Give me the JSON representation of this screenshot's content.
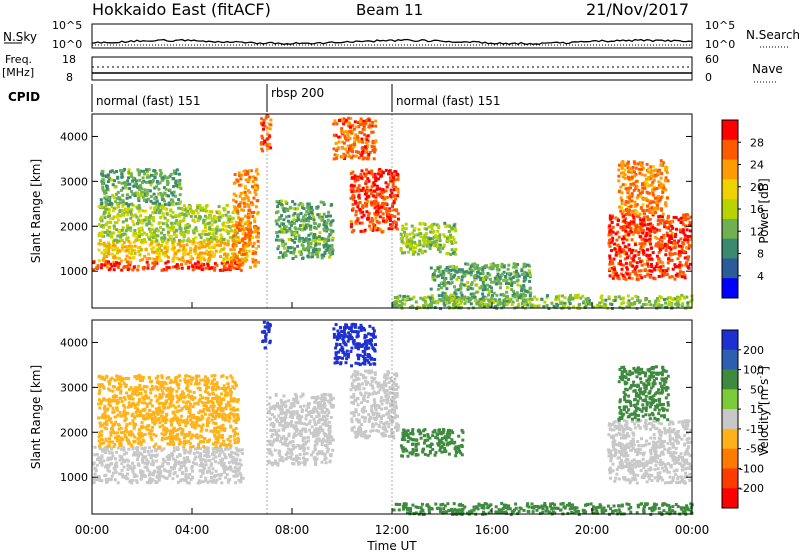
{
  "header": {
    "radar": "Hokkaido East (fitACF)",
    "beam": "Beam 11",
    "date": "21/Nov/2017"
  },
  "noise_panel": {
    "left_label": "N.Sky",
    "right_label": "N.Search",
    "ticks_left": [
      "10^5",
      "10^0"
    ],
    "ticks_right": [
      "10^5",
      "10^0"
    ]
  },
  "freq_panel": {
    "left_label": "Freq.",
    "left_unit": "[MHz]",
    "right_label": "Nave",
    "ticks_left": [
      "18",
      "8"
    ],
    "ticks_right": [
      "60",
      "0"
    ]
  },
  "cpid": {
    "label": "CPID",
    "modes": [
      {
        "name": "normal (fast) 151",
        "start": 0,
        "end": 7
      },
      {
        "name": "rbsp 200",
        "start": 7,
        "end": 12
      },
      {
        "name": "normal (fast) 151",
        "start": 12,
        "end": 24
      }
    ]
  },
  "x_axis": {
    "label": "Time UT",
    "tick_labels": [
      "00:00",
      "04:00",
      "08:00",
      "12:00",
      "16:00",
      "20:00",
      "00:00"
    ],
    "range_hours": [
      0,
      24
    ]
  },
  "power_colorbar": {
    "label": "Power [dB]",
    "tick_labels": [
      "28",
      "24",
      "20",
      "16",
      "12",
      "8",
      "4"
    ],
    "colors": [
      "#ff0000",
      "#ff5a00",
      "#ff9c00",
      "#f0d200",
      "#b8d400",
      "#6fb050",
      "#3a8a70",
      "#2a5c9a",
      "#0000ff"
    ]
  },
  "velocity_colorbar": {
    "label": "Velocity [m s",
    "label_sup": "-1",
    "label_end": "]",
    "tick_labels": [
      "200",
      "100",
      "50",
      "15",
      "-15",
      "-50",
      "-100",
      "-200"
    ],
    "colors": [
      "#1f30d0",
      "#2c5fb0",
      "#3e8a3e",
      "#7ccc3a",
      "#c8c8c8",
      "#ffb21a",
      "#ff7a00",
      "#ff3c00",
      "#ff0000"
    ]
  },
  "chart_data": [
    {
      "type": "heatmap",
      "title": "Power",
      "ylabel": "Slant Range [km]",
      "xlabel": "",
      "xlim": [
        0,
        24
      ],
      "ylim": [
        180,
        4500
      ],
      "ytick_labels": [
        "1000",
        "2000",
        "3000",
        "4000"
      ],
      "yticks": [
        1000,
        2000,
        3000,
        4000
      ],
      "regions": [
        {
          "t0": 0.0,
          "t1": 6.0,
          "r0": 1050,
          "r1": 1250,
          "value": 28
        },
        {
          "t0": 0.2,
          "t1": 6.2,
          "r0": 1250,
          "r1": 1700,
          "value": 20
        },
        {
          "t0": 0.2,
          "t1": 5.8,
          "r0": 1700,
          "r1": 2500,
          "value": 14
        },
        {
          "t0": 0.3,
          "t1": 3.5,
          "r0": 2500,
          "r1": 3300,
          "value": 10
        },
        {
          "t0": 5.6,
          "t1": 6.6,
          "r0": 1100,
          "r1": 3300,
          "value": 24
        },
        {
          "t0": 6.7,
          "t1": 7.1,
          "r0": 3700,
          "r1": 4500,
          "value": 26
        },
        {
          "t0": 7.3,
          "t1": 9.6,
          "r0": 1300,
          "r1": 2600,
          "value": 10
        },
        {
          "t0": 9.6,
          "t1": 11.3,
          "r0": 3500,
          "r1": 4450,
          "value": 26
        },
        {
          "t0": 10.3,
          "t1": 12.2,
          "r0": 1900,
          "r1": 3300,
          "value": 28
        },
        {
          "t0": 12.3,
          "t1": 14.5,
          "r0": 1400,
          "r1": 2100,
          "value": 13
        },
        {
          "t0": 13.5,
          "t1": 17.5,
          "r0": 300,
          "r1": 1200,
          "value": 10
        },
        {
          "t0": 12.0,
          "t1": 24.0,
          "r0": 200,
          "r1": 500,
          "value": 12
        },
        {
          "t0": 20.6,
          "t1": 23.9,
          "r0": 850,
          "r1": 2300,
          "value": 28
        },
        {
          "t0": 21.0,
          "t1": 23.0,
          "r0": 2300,
          "r1": 3500,
          "value": 24
        }
      ]
    },
    {
      "type": "heatmap",
      "title": "Velocity",
      "ylabel": "Slant Range [km]",
      "xlabel": "Time UT",
      "xlim": [
        0,
        24
      ],
      "ylim": [
        180,
        4500
      ],
      "ytick_labels": [
        "1000",
        "2000",
        "3000",
        "4000"
      ],
      "yticks": [
        1000,
        2000,
        3000,
        4000
      ],
      "regions": [
        {
          "t0": 0.0,
          "t1": 6.0,
          "r0": 900,
          "r1": 1700,
          "value": 0
        },
        {
          "t0": 0.2,
          "t1": 5.8,
          "r0": 1700,
          "r1": 3300,
          "value": -30
        },
        {
          "t0": 6.7,
          "t1": 7.1,
          "r0": 3900,
          "r1": 4500,
          "value": 200
        },
        {
          "t0": 7.0,
          "t1": 9.6,
          "r0": 1300,
          "r1": 2900,
          "value": 0
        },
        {
          "t0": 9.6,
          "t1": 11.3,
          "r0": 3500,
          "r1": 4450,
          "value": 220
        },
        {
          "t0": 10.3,
          "t1": 12.2,
          "r0": 1900,
          "r1": 3400,
          "value": 0
        },
        {
          "t0": 12.3,
          "t1": 14.8,
          "r0": 1500,
          "r1": 2100,
          "value": 40
        },
        {
          "t0": 12.0,
          "t1": 24.0,
          "r0": 200,
          "r1": 450,
          "value": 40
        },
        {
          "t0": 20.6,
          "t1": 23.9,
          "r0": 900,
          "r1": 2300,
          "value": 0
        },
        {
          "t0": 21.0,
          "t1": 23.0,
          "r0": 2300,
          "r1": 3500,
          "value": 40
        }
      ]
    }
  ]
}
